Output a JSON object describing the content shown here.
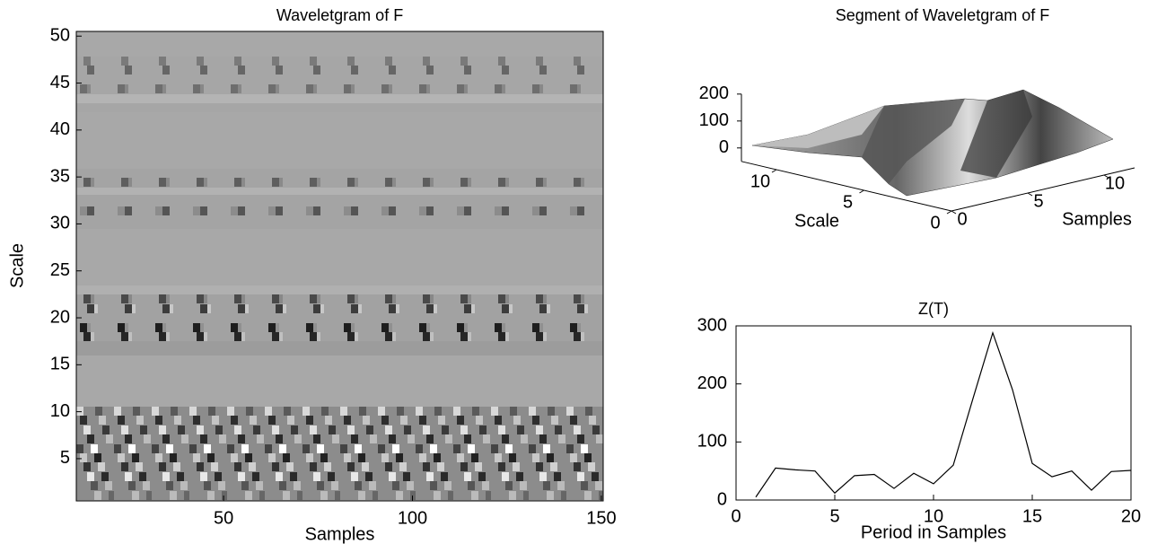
{
  "chart_data": [
    {
      "type": "heatmap",
      "title": "Waveletgram of F",
      "xlabel": "Samples",
      "ylabel": "Scale",
      "xlim": [
        11,
        150.5
      ],
      "ylim": [
        0.5,
        50.5
      ],
      "xticks": [
        50,
        100,
        150
      ],
      "yticks": [
        5,
        10,
        15,
        20,
        25,
        30,
        35,
        40,
        45,
        50
      ],
      "colormap": "gray"
    },
    {
      "type": "surface",
      "title": "Segment of Waveletgram of F",
      "xlabel": "Samples",
      "ylabel": "Scale",
      "xlim": [
        0,
        12
      ],
      "ylim": [
        0,
        12
      ],
      "zlim": [
        -50,
        250
      ],
      "xticks": [
        0,
        5,
        10
      ],
      "yticks": [
        0,
        5,
        10
      ],
      "zticks": [
        0,
        100,
        200
      ]
    },
    {
      "type": "line",
      "title": "Z(T)",
      "xlabel": "Period in Samples",
      "x": [
        1,
        2,
        3,
        4,
        5,
        6,
        7,
        8,
        9,
        10,
        11,
        12,
        13,
        14,
        15,
        16,
        17,
        18,
        19,
        20
      ],
      "values": [
        5,
        55,
        52,
        50,
        12,
        42,
        44,
        20,
        46,
        28,
        60,
        175,
        288,
        190,
        63,
        40,
        50,
        17,
        49,
        51
      ],
      "color": "#000000",
      "xlim": [
        0,
        20
      ],
      "ylim": [
        0,
        300
      ],
      "xticks": [
        0,
        5,
        10,
        15,
        20
      ],
      "yticks": [
        0,
        100,
        200,
        300
      ]
    }
  ]
}
